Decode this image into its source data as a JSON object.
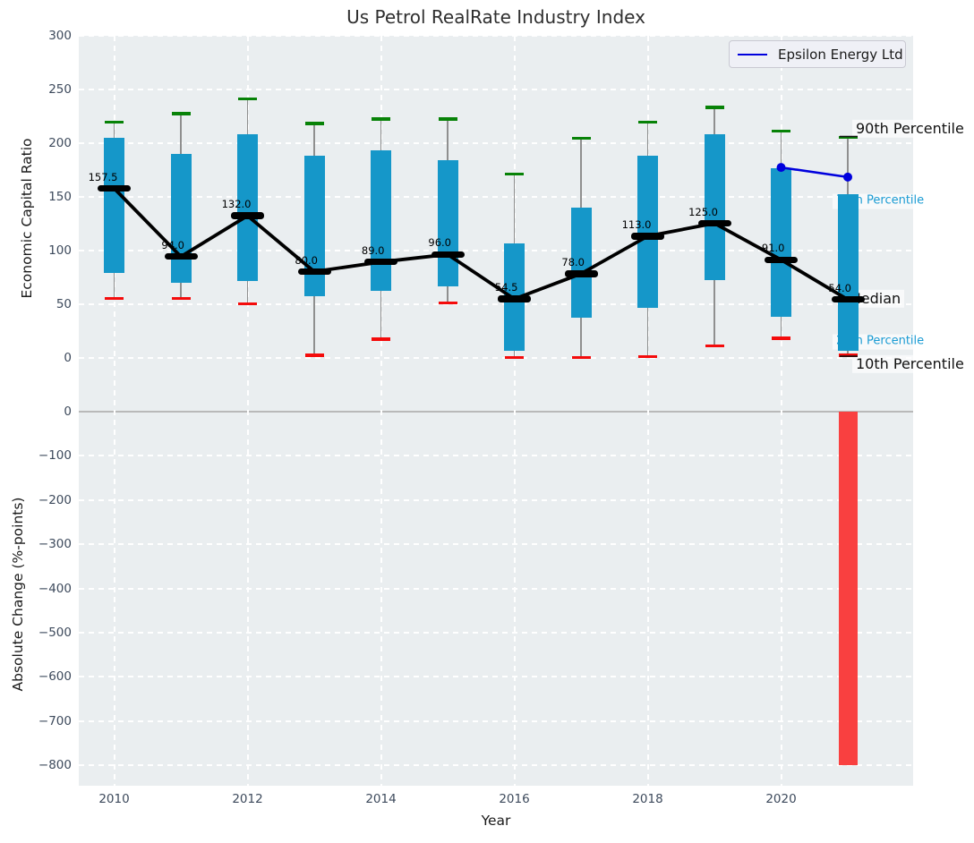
{
  "title": "Us Petrol RealRate Industry Index",
  "legend": {
    "label": "Epsilon Energy Ltd",
    "line_color": "#0000dd"
  },
  "annotations": {
    "p90": "90th Percentile",
    "p75": "75th Percentile",
    "median": "Median",
    "p25": "25th Percentile",
    "p10": "10th Percentile"
  },
  "axes": {
    "top": {
      "ylabel": "Economic Capital Ratio",
      "yticks": [
        {
          "label": "300",
          "value": 300
        },
        {
          "label": "250",
          "value": 250
        },
        {
          "label": "200",
          "value": 200
        },
        {
          "label": "150",
          "value": 150
        },
        {
          "label": "100",
          "value": 100
        },
        {
          "label": "50",
          "value": 50
        },
        {
          "label": "0",
          "value": 0
        }
      ]
    },
    "bottom": {
      "ylabel": "Absolute Change (%-points)",
      "yticks": [
        {
          "label": "0",
          "value": 0
        },
        {
          "label": "−100",
          "value": -100
        },
        {
          "label": "−200",
          "value": -200
        },
        {
          "label": "−300",
          "value": -300
        },
        {
          "label": "−400",
          "value": -400
        },
        {
          "label": "−500",
          "value": -500
        },
        {
          "label": "−600",
          "value": -600
        },
        {
          "label": "−700",
          "value": -700
        },
        {
          "label": "−800",
          "value": -800
        }
      ]
    },
    "x": {
      "label": "Year",
      "ticks": [
        {
          "label": "2010",
          "value": 2010
        },
        {
          "label": "2012",
          "value": 2012
        },
        {
          "label": "2014",
          "value": 2014
        },
        {
          "label": "2016",
          "value": 2016
        },
        {
          "label": "2018",
          "value": 2018
        },
        {
          "label": "2020",
          "value": 2020
        }
      ]
    }
  },
  "colors": {
    "panel_bg": "#eaeef0",
    "box_fill": "#1597c9",
    "whisker": "#8f8f8f",
    "cap_90": "#078207",
    "cap_10": "#f40b0b",
    "median": "#000000",
    "trend_line": "#000000",
    "company_line": "#0000dd",
    "bar_negative": "#f94040",
    "annotation_cyan": "#1a9bd3",
    "annotation_black": "#111111"
  },
  "chart_data": [
    {
      "type": "box",
      "panel": "top",
      "title": "Us Petrol RealRate Industry Index",
      "xlabel": "Year",
      "ylabel": "Economic Capital Ratio",
      "ylim": [
        -45,
        300
      ],
      "grid": true,
      "legend_position": "upper right",
      "categories": [
        2010,
        2011,
        2012,
        2013,
        2014,
        2015,
        2016,
        2017,
        2018,
        2019,
        2020,
        2021
      ],
      "series": [
        {
          "name": "90th Percentile",
          "values": [
            219,
            227,
            241,
            218,
            222,
            222,
            171,
            204,
            219,
            233,
            211,
            205
          ]
        },
        {
          "name": "75th Percentile",
          "values": [
            205,
            190,
            208,
            188,
            193,
            184,
            106,
            140,
            188,
            208,
            176,
            152
          ]
        },
        {
          "name": "Median",
          "values": [
            157.5,
            94,
            132,
            80,
            89,
            96,
            54.5,
            78,
            113,
            125,
            91,
            54
          ]
        },
        {
          "name": "25th Percentile",
          "values": [
            79,
            70,
            71,
            57,
            62,
            66,
            6,
            37,
            46,
            72,
            38,
            6
          ]
        },
        {
          "name": "10th Percentile",
          "values": [
            55,
            55,
            50,
            2,
            17,
            51,
            0,
            0,
            1,
            11,
            18,
            2
          ]
        }
      ],
      "median_labels": [
        "157.5",
        "94.0",
        "132.0",
        "80.0",
        "89.0",
        "96.0",
        "54.5",
        "78.0",
        "113.0",
        "125.0",
        "91.0",
        "54.0"
      ],
      "company_line": {
        "name": "Epsilon Energy Ltd",
        "x": [
          2020,
          2021
        ],
        "values": [
          177,
          168
        ]
      }
    },
    {
      "type": "bar",
      "panel": "bottom",
      "ylabel": "Absolute Change (%-points)",
      "ylim": [
        -846,
        20
      ],
      "x": [
        2021
      ],
      "values": [
        -800
      ],
      "bar_color": "#f94040"
    }
  ]
}
